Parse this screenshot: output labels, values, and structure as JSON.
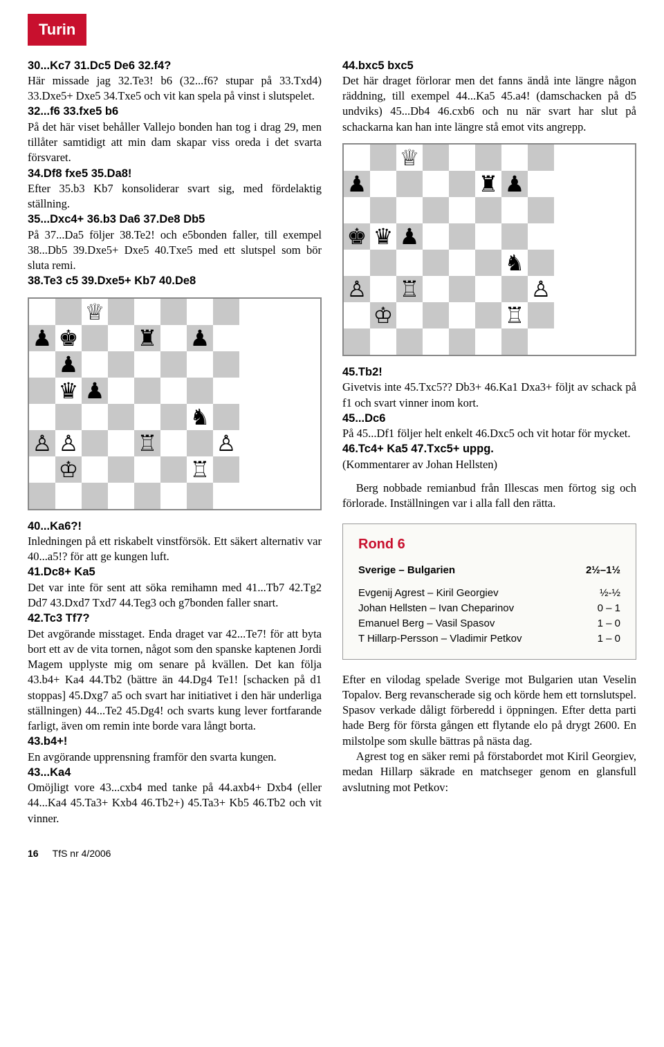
{
  "badge": "Turin",
  "footer": {
    "pageNum": "16",
    "issue": "TfS nr 4/2006"
  },
  "col1": {
    "p1_move": "30...Kc7 31.Dc5 De6 32.f4?",
    "p1_text": "Här missade jag 32.Te3! b6 (32...f6? stupar på 33.Txd4) 33.Dxe5+ Dxe5 34.Txe5 och vit kan spela på vinst i slutspelet.",
    "p2_move": "32...f6 33.fxe5 b6",
    "p2_text": "På det här viset behåller Vallejo bonden han tog i drag 29, men tillåter samtidigt att min dam skapar viss oreda i det svarta försvaret.",
    "p3_move": "34.Df8 fxe5 35.Da8!",
    "p3_text": "Efter 35.b3 Kb7 konsoliderar svart sig, med fördelaktig ställning.",
    "p4_move": "35...Dxc4+ 36.b3 Da6 37.De8 Db5",
    "p4_text": "På 37...Da5 följer 38.Te2! och e5bonden faller, till exempel 38...Db5 39.Dxe5+ Dxe5 40.Txe5 med ett slutspel som bör sluta remi.",
    "p5_move": "38.Te3 c5 39.Dxe5+ Kb7 40.De8",
    "p6_move": "40...Ka6?!",
    "p6_text": "Inledningen på ett riskabelt vinstförsök. Ett säkert alternativ var 40...a5!? för att ge kungen luft.",
    "p7_move": "41.Dc8+ Ka5",
    "p7_text": "Det var inte för sent att söka remihamn med 41...Tb7 42.Tg2 Dd7 43.Dxd7 Txd7 44.Teg3 och g7bonden faller snart.",
    "p8_move": "42.Tc3 Tf7?",
    "p8_text": "Det avgörande misstaget. Enda draget var 42...Te7! för att byta bort ett av de vita tornen, något som den spanske kaptenen Jordi Magem upplyste mig om senare på kvällen. Det kan följa 43.b4+ Ka4 44.Tb2 (bättre än 44.Dg4 Te1! [schacken på d1 stoppas] 45.Dxg7 a5 och svart har initiativet i den här underliga ställningen) 44...Te2 45.Dg4! och svarts kung lever fortfarande farligt, även om remin inte borde vara långt borta.",
    "p9_move": "43.b4+!",
    "p9_text": "En avgörande upprensning framför den svarta kungen.",
    "p10_move": "43...Ka4",
    "p10_text": "Omöjligt vore 43...cxb4 med tanke på 44.axb4+ Dxb4 (eller 44...Ka4 45.Ta3+ Kxb4 46.Tb2+) 45.Ta3+ Kb5 46.Tb2 och vit vinner."
  },
  "col2": {
    "p1_move": "44.bxc5 bxc5",
    "p1_text": "Det här draget förlorar men det fanns ändå inte längre någon räddning, till exempel 44...Ka5 45.a4! (damschacken på d5 undviks) 45...Db4 46.cxb6 och nu när svart har slut på schackarna kan han inte längre stå emot vits angrepp.",
    "p2_move": "45.Tb2!",
    "p2_text": "Givetvis inte 45.Txc5?? Db3+ 46.Ka1 Dxa3+ följt av schack på f1 och svart vinner inom kort.",
    "p3_move": "45...Dc6",
    "p3_text": "På 45...Df1 följer helt enkelt 46.Dxc5 och vit hotar för mycket.",
    "p4_move": "46.Tc4+ Ka5 47.Txc5+ uppg.",
    "p4_text": "(Kommentarer av Johan Hellsten)",
    "p5_text": "Berg nobbade remianbud från Illescas men förtog sig och förlorade. Inställningen var i alla fall den rätta.",
    "p6_text": "Efter en vilodag spelade Sverige mot Bulgarien utan Veselin Topalov. Berg revanscherade sig och körde hem ett tornslutspel. Spasov verkade dåligt förberedd i öppningen. Efter detta parti hade Berg för första gången ett flytande elo på drygt 2600. En milstolpe som skulle bättras på nästa dag.",
    "p7_text": "Agrest tog en säker remi på förstabordet mot Kiril Georgiev, medan Hillarp säkrade en matchseger genom en glansfull avslutning mot Petkov:"
  },
  "round": {
    "title": "Rond 6",
    "match": {
      "teams": "Sverige – Bulgarien",
      "score": "2½–1½"
    },
    "games": [
      {
        "pair": "Evgenij Agrest – Kiril Georgiev",
        "score": "½-½"
      },
      {
        "pair": "Johan Hellsten – Ivan Cheparinov",
        "score": "0 – 1"
      },
      {
        "pair": "Emanuel Berg – Vasil Spasov",
        "score": "1 – 0"
      },
      {
        "pair": "T Hillarp-Persson – Vladimir Petkov",
        "score": "1 – 0"
      }
    ]
  },
  "boards": {
    "board1": [
      [
        "",
        "",
        "♕",
        "",
        "",
        "",
        "",
        ""
      ],
      [
        "♟",
        "♚",
        "",
        "",
        "♜",
        "",
        "♟",
        ""
      ],
      [
        "",
        "♟",
        "",
        "",
        "",
        "",
        "",
        ""
      ],
      [
        "",
        "♛",
        "♟",
        "",
        "",
        "",
        "",
        ""
      ],
      [
        "",
        "",
        "",
        "",
        "",
        "",
        "♞",
        ""
      ],
      [
        "♙",
        "♙",
        "",
        "",
        "♖",
        "",
        "",
        "♙"
      ],
      [
        "",
        "♔",
        "",
        "",
        "",
        "",
        "♖",
        ""
      ],
      [
        "",
        "",
        "",
        "",
        "",
        "",
        "",
        ""
      ]
    ],
    "board2": [
      [
        "",
        "",
        "♕",
        "",
        "",
        "",
        "",
        ""
      ],
      [
        "♟",
        "",
        "",
        "",
        "",
        "♜",
        "♟",
        ""
      ],
      [
        "",
        "",
        "",
        "",
        "",
        "",
        "",
        ""
      ],
      [
        "♚",
        "♛",
        "♟",
        "",
        "",
        "",
        "",
        ""
      ],
      [
        "",
        "",
        "",
        "",
        "",
        "",
        "♞",
        ""
      ],
      [
        "♙",
        "",
        "♖",
        "",
        "",
        "",
        "",
        "♙"
      ],
      [
        "",
        "♔",
        "",
        "",
        "",
        "",
        "♖",
        ""
      ],
      [
        "",
        "",
        "",
        "",
        "",
        "",
        "",
        ""
      ]
    ]
  }
}
